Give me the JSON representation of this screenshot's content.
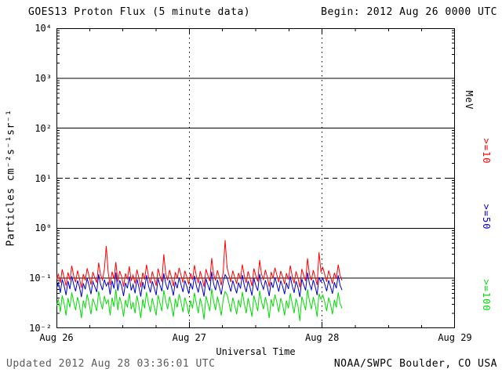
{
  "header": {
    "title": "GOES13 Proton Flux (5 minute data)",
    "begin": "Begin: 2012 Aug 26 0000 UTC"
  },
  "footer": {
    "updated": "Updated 2012 Aug 28 03:36:01 UTC",
    "credit": "NOAA/SWPC Boulder, CO USA"
  },
  "chart_data": {
    "type": "line",
    "title": "GOES13 Proton Flux (5 minute data)",
    "xlabel": "Universal Time",
    "ylabel": "Particles cm⁻²s⁻¹sr⁻¹",
    "right_unit": "MeV",
    "y_scale": "log10",
    "y_exp_top": 4,
    "y_exp_bottom": -2,
    "y_ticks": [
      "10⁴",
      "10³",
      "10²",
      "10¹",
      "10⁰",
      "10⁻¹",
      "10⁻²"
    ],
    "x_ticks": [
      "Aug 26",
      "Aug 27",
      "Aug 28",
      "Aug 29"
    ],
    "x_total_days": 3,
    "hlines_solid_exp": [
      3,
      2,
      0,
      -1
    ],
    "hlines_dashed_exp": [
      1
    ],
    "vlines_days": [
      1,
      2
    ],
    "series_x_start_day": 0,
    "series_x_end_day": 2.15,
    "grid": "partial",
    "legend_position": "right-rotated",
    "series": [
      {
        "name": ">=10",
        "unit": "MeV",
        "color": "#ff0000",
        "values": [
          0.095,
          0.12,
          0.081,
          0.15,
          0.102,
          0.071,
          0.131,
          0.092,
          0.178,
          0.11,
          0.083,
          0.142,
          0.098,
          0.064,
          0.121,
          0.09,
          0.158,
          0.112,
          0.074,
          0.133,
          0.101,
          0.082,
          0.205,
          0.118,
          0.092,
          0.151,
          0.44,
          0.128,
          0.073,
          0.135,
          0.096,
          0.21,
          0.085,
          0.139,
          0.107,
          0.068,
          0.124,
          0.095,
          0.172,
          0.088,
          0.115,
          0.078,
          0.148,
          0.101,
          0.066,
          0.129,
          0.094,
          0.186,
          0.108,
          0.079,
          0.136,
          0.099,
          0.071,
          0.155,
          0.112,
          0.085,
          0.3,
          0.122,
          0.091,
          0.146,
          0.104,
          0.069,
          0.132,
          0.098,
          0.161,
          0.115,
          0.082,
          0.14,
          0.106,
          0.075,
          0.125,
          0.093,
          0.182,
          0.109,
          0.08,
          0.138,
          0.1,
          0.067,
          0.152,
          0.114,
          0.087,
          0.252,
          0.119,
          0.09,
          0.144,
          0.103,
          0.072,
          0.134,
          0.58,
          0.163,
          0.116,
          0.084,
          0.141,
          0.105,
          0.077,
          0.127,
          0.096,
          0.188,
          0.111,
          0.081,
          0.137,
          0.1,
          0.07,
          0.156,
          0.113,
          0.086,
          0.23,
          0.121,
          0.092,
          0.147,
          0.105,
          0.068,
          0.133,
          0.099,
          0.162,
          0.116,
          0.083,
          0.139,
          0.107,
          0.076,
          0.126,
          0.094,
          0.18,
          0.11,
          0.079,
          0.137,
          0.101,
          0.066,
          0.153,
          0.115,
          0.088,
          0.25,
          0.12,
          0.091,
          0.145,
          0.104,
          0.073,
          0.33,
          0.135,
          0.164,
          0.117,
          0.085,
          0.142,
          0.106,
          0.078,
          0.128,
          0.097,
          0.187,
          0.112,
          0.09
        ]
      },
      {
        "name": ">=50",
        "unit": "MeV",
        "color": "#0000cc",
        "values": [
          0.065,
          0.082,
          0.051,
          0.095,
          0.07,
          0.046,
          0.088,
          0.061,
          0.11,
          0.074,
          0.055,
          0.09,
          0.067,
          0.042,
          0.079,
          0.06,
          0.1,
          0.072,
          0.048,
          0.086,
          0.068,
          0.053,
          0.12,
          0.076,
          0.058,
          0.094,
          0.07,
          0.083,
          0.047,
          0.089,
          0.062,
          0.13,
          0.056,
          0.091,
          0.069,
          0.044,
          0.081,
          0.063,
          0.108,
          0.057,
          0.075,
          0.05,
          0.096,
          0.066,
          0.043,
          0.084,
          0.06,
          0.115,
          0.071,
          0.052,
          0.087,
          0.064,
          0.046,
          0.098,
          0.073,
          0.055,
          0.125,
          0.078,
          0.059,
          0.092,
          0.067,
          0.045,
          0.085,
          0.063,
          0.103,
          0.074,
          0.053,
          0.09,
          0.068,
          0.049,
          0.08,
          0.06,
          0.112,
          0.07,
          0.052,
          0.088,
          0.065,
          0.043,
          0.097,
          0.073,
          0.056,
          0.135,
          0.077,
          0.058,
          0.093,
          0.066,
          0.047,
          0.086,
          0.118,
          0.102,
          0.074,
          0.054,
          0.09,
          0.067,
          0.05,
          0.082,
          0.062,
          0.116,
          0.071,
          0.053,
          0.088,
          0.065,
          0.045,
          0.099,
          0.072,
          0.056,
          0.122,
          0.077,
          0.06,
          0.091,
          0.068,
          0.044,
          0.084,
          0.064,
          0.104,
          0.075,
          0.054,
          0.089,
          0.069,
          0.048,
          0.081,
          0.061,
          0.11,
          0.071,
          0.051,
          0.087,
          0.066,
          0.042,
          0.096,
          0.074,
          0.057,
          0.13,
          0.078,
          0.059,
          0.092,
          0.067,
          0.046,
          0.105,
          0.085,
          0.1,
          0.075,
          0.055,
          0.091,
          0.068,
          0.049,
          0.083,
          0.063,
          0.114,
          0.072,
          0.058
        ]
      },
      {
        "name": ">=100",
        "unit": "MeV",
        "color": "#00dd00",
        "values": [
          0.028,
          0.038,
          0.021,
          0.045,
          0.031,
          0.018,
          0.04,
          0.026,
          0.052,
          0.033,
          0.023,
          0.042,
          0.029,
          0.016,
          0.036,
          0.025,
          0.048,
          0.032,
          0.019,
          0.039,
          0.03,
          0.022,
          0.055,
          0.034,
          0.024,
          0.044,
          0.031,
          0.037,
          0.018,
          0.041,
          0.027,
          0.06,
          0.023,
          0.042,
          0.03,
          0.017,
          0.037,
          0.026,
          0.05,
          0.024,
          0.033,
          0.02,
          0.045,
          0.028,
          0.016,
          0.038,
          0.025,
          0.053,
          0.031,
          0.021,
          0.04,
          0.027,
          0.018,
          0.046,
          0.032,
          0.022,
          0.058,
          0.035,
          0.024,
          0.043,
          0.029,
          0.017,
          0.039,
          0.026,
          0.048,
          0.033,
          0.021,
          0.041,
          0.03,
          0.019,
          0.036,
          0.025,
          0.051,
          0.031,
          0.02,
          0.04,
          0.028,
          0.015,
          0.044,
          0.032,
          0.022,
          0.062,
          0.034,
          0.023,
          0.043,
          0.029,
          0.018,
          0.038,
          0.054,
          0.047,
          0.032,
          0.021,
          0.041,
          0.029,
          0.019,
          0.037,
          0.026,
          0.053,
          0.031,
          0.02,
          0.04,
          0.027,
          0.017,
          0.045,
          0.032,
          0.022,
          0.056,
          0.034,
          0.024,
          0.042,
          0.029,
          0.016,
          0.038,
          0.027,
          0.047,
          0.033,
          0.021,
          0.04,
          0.03,
          0.018,
          0.036,
          0.025,
          0.05,
          0.031,
          0.02,
          0.039,
          0.028,
          0.014,
          0.043,
          0.032,
          0.023,
          0.06,
          0.035,
          0.024,
          0.042,
          0.029,
          0.017,
          0.049,
          0.038,
          0.046,
          0.033,
          0.022,
          0.041,
          0.03,
          0.019,
          0.037,
          0.026,
          0.052,
          0.031,
          0.025
        ]
      }
    ]
  }
}
